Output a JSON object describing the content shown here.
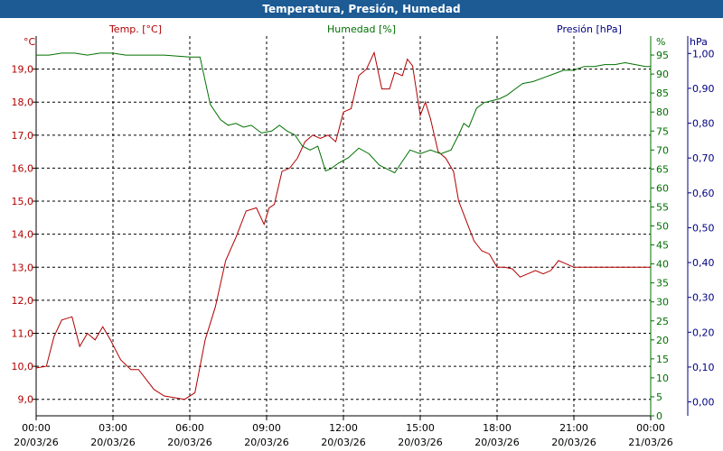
{
  "window": {
    "title": "Temperatura, Presión, Humedad"
  },
  "colors": {
    "temp": "#b00000",
    "humidity": "#007000",
    "pressure": "#000080",
    "grid": "#000000"
  },
  "chart_data": {
    "type": "line",
    "title": "Temperatura, Presión, Humedad",
    "grid": true,
    "x_ticks": [
      {
        "h": 0,
        "time": "00:00",
        "date": "20/03/26"
      },
      {
        "h": 3,
        "time": "03:00",
        "date": "20/03/26"
      },
      {
        "h": 6,
        "time": "06:00",
        "date": "20/03/26"
      },
      {
        "h": 9,
        "time": "09:00",
        "date": "20/03/26"
      },
      {
        "h": 12,
        "time": "12:00",
        "date": "20/03/26"
      },
      {
        "h": 15,
        "time": "15:00",
        "date": "20/03/26"
      },
      {
        "h": 18,
        "time": "18:00",
        "date": "20/03/26"
      },
      {
        "h": 21,
        "time": "21:00",
        "date": "20/03/26"
      },
      {
        "h": 24,
        "time": "00:00",
        "date": "21/03/26"
      }
    ],
    "axes": {
      "temp": {
        "label": "Temp. [°C]",
        "unit": "°C",
        "min": 8.5,
        "max": 20.0,
        "ticks": [
          "9,0",
          "10,0",
          "11,0",
          "12,0",
          "13,0",
          "14,0",
          "15,0",
          "16,0",
          "17,0",
          "18,0",
          "19,0"
        ],
        "tick_values": [
          9,
          10,
          11,
          12,
          13,
          14,
          15,
          16,
          17,
          18,
          19
        ]
      },
      "humidity": {
        "label": "Humedad [%]",
        "unit": "%",
        "min": 0,
        "max": 100,
        "ticks": [
          "0",
          "5",
          "10",
          "15",
          "20",
          "25",
          "30",
          "35",
          "40",
          "45",
          "50",
          "55",
          "60",
          "65",
          "70",
          "75",
          "80",
          "85",
          "90",
          "95"
        ],
        "tick_values": [
          0,
          5,
          10,
          15,
          20,
          25,
          30,
          35,
          40,
          45,
          50,
          55,
          60,
          65,
          70,
          75,
          80,
          85,
          90,
          95
        ]
      },
      "pressure": {
        "label": "Presión [hPa]",
        "unit": "hPa",
        "min": -0.04,
        "max": 1.05,
        "ticks": [
          "0,00",
          "0,10",
          "0,20",
          "0,30",
          "0,40",
          "0,50",
          "0,60",
          "0,70",
          "0,80",
          "0,90",
          "1,00"
        ],
        "tick_values": [
          0,
          0.1,
          0.2,
          0.3,
          0.4,
          0.5,
          0.6,
          0.7,
          0.8,
          0.9,
          1.0
        ]
      }
    },
    "series": [
      {
        "name": "Temp. [°C]",
        "axis": "temp",
        "x": [
          0,
          0.4,
          0.7,
          1.0,
          1.4,
          1.7,
          2.0,
          2.3,
          2.6,
          2.9,
          3.1,
          3.3,
          3.7,
          4.0,
          4.3,
          4.6,
          5.0,
          5.4,
          5.8,
          6.2,
          6.6,
          7.0,
          7.4,
          7.8,
          8.2,
          8.6,
          8.9,
          9.1,
          9.3,
          9.6,
          9.9,
          10.2,
          10.5,
          10.8,
          11.1,
          11.4,
          11.7,
          12.0,
          12.3,
          12.6,
          12.9,
          13.2,
          13.5,
          13.8,
          14.0,
          14.3,
          14.5,
          14.7,
          15.0,
          15.2,
          15.4,
          15.7,
          16.0,
          16.3,
          16.5,
          16.7,
          16.9,
          17.1,
          17.4,
          17.7,
          18.0,
          18.3,
          18.6,
          18.9,
          19.2,
          19.5,
          19.8,
          20.1,
          20.4,
          20.7,
          21.0,
          21.4,
          21.8,
          22.2,
          22.6,
          23.0,
          23.4,
          23.8,
          24.0
        ],
        "values": [
          9.95,
          10.0,
          10.9,
          11.4,
          11.5,
          10.6,
          11.0,
          10.8,
          11.2,
          10.8,
          10.5,
          10.2,
          9.9,
          9.9,
          9.6,
          9.3,
          9.1,
          9.05,
          9.0,
          9.2,
          10.8,
          11.8,
          13.2,
          13.9,
          14.7,
          14.8,
          14.3,
          14.8,
          14.9,
          15.9,
          16.0,
          16.3,
          16.8,
          17.0,
          16.9,
          17.0,
          16.8,
          17.7,
          17.8,
          18.8,
          19.0,
          19.5,
          18.4,
          18.4,
          18.9,
          18.8,
          19.3,
          19.1,
          17.6,
          18.0,
          17.5,
          16.5,
          16.3,
          15.9,
          15.0,
          14.6,
          14.2,
          13.8,
          13.5,
          13.4,
          13.0,
          13.0,
          12.95,
          12.7,
          12.8,
          12.9,
          12.8,
          12.9,
          13.2,
          13.1,
          13.0,
          13.0,
          13.0,
          13.0,
          13.0,
          13.0,
          13.0,
          13.0,
          13.0
        ]
      },
      {
        "name": "Humedad [%]",
        "axis": "humidity",
        "x": [
          0,
          0.5,
          1.0,
          1.5,
          2.0,
          2.5,
          3.0,
          3.5,
          4.0,
          5.0,
          6.0,
          6.4,
          6.8,
          7.2,
          7.5,
          7.8,
          8.1,
          8.4,
          8.8,
          9.2,
          9.5,
          9.8,
          10.1,
          10.4,
          10.7,
          11.0,
          11.3,
          11.5,
          11.8,
          12.2,
          12.6,
          13.0,
          13.4,
          13.7,
          14.0,
          14.3,
          14.6,
          15.0,
          15.4,
          15.8,
          16.2,
          16.5,
          16.7,
          16.9,
          17.2,
          17.5,
          17.8,
          18.1,
          18.4,
          18.7,
          19.0,
          19.4,
          19.8,
          20.2,
          20.6,
          21.0,
          21.4,
          21.8,
          22.2,
          22.6,
          23.0,
          23.4,
          23.8,
          24.0
        ],
        "values": [
          95,
          95,
          95.5,
          95.5,
          95,
          95.5,
          95.5,
          95,
          95,
          95,
          94.5,
          94.5,
          82,
          78,
          76.5,
          77,
          76,
          76.5,
          74.5,
          75,
          76.5,
          75,
          74,
          71,
          70,
          71,
          64.5,
          65,
          66.5,
          68,
          70.5,
          69,
          66,
          65,
          64,
          67,
          70,
          69,
          70,
          69,
          70,
          74,
          77,
          76,
          81,
          82.5,
          83,
          83.5,
          84.5,
          86,
          87.5,
          88,
          89,
          90,
          91,
          91,
          92,
          92,
          92.5,
          92.5,
          93,
          92.5,
          92,
          92
        ]
      }
    ]
  }
}
